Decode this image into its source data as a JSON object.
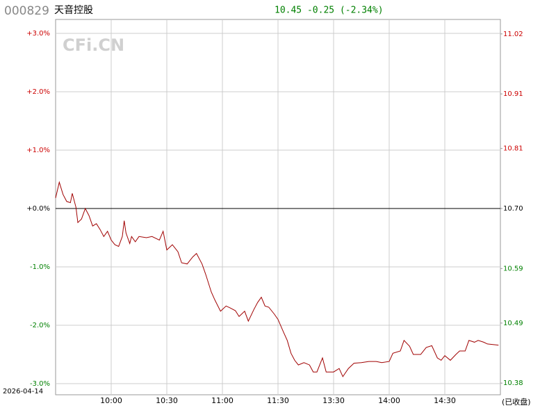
{
  "chart_data": {
    "type": "line",
    "code": "000829",
    "name": "天音控股",
    "quote": "10.45 -0.25 (-2.34%)",
    "watermark": "CFi.CN",
    "date": "2026-04-14",
    "status": "(已收盘)",
    "color": "#a00000",
    "up_color": "#cc0000",
    "down_color": "#008000",
    "flat_color": "#000000",
    "grid": true,
    "xlim": [
      0,
      240
    ],
    "xticks": [
      {
        "value": 30,
        "label": "10:00"
      },
      {
        "value": 60,
        "label": "10:30"
      },
      {
        "value": 90,
        "label": "11:00"
      },
      {
        "value": 120,
        "label": "11:30"
      },
      {
        "value": 150,
        "label": "13:30"
      },
      {
        "value": 180,
        "label": "14:00"
      },
      {
        "value": 210,
        "label": "14:30"
      }
    ],
    "ylim": [
      -3,
      3
    ],
    "yticks": [
      {
        "value": 3,
        "label": "+3.0%"
      },
      {
        "value": 2,
        "label": "+2.0%"
      },
      {
        "value": 1,
        "label": "+1.0%"
      },
      {
        "value": 0,
        "label": "+0.0%"
      },
      {
        "value": -1,
        "label": "-1.0%"
      },
      {
        "value": -2,
        "label": "-2.0%"
      },
      {
        "value": -3,
        "label": "-3.0%"
      }
    ],
    "y2lim": [
      10.379,
      11.021
    ],
    "y2ticks": [
      11.02,
      10.91,
      10.81,
      {
        "value": 10.7,
        "label": "10.70"
      },
      10.59,
      10.49,
      10.38
    ],
    "x": [
      0,
      2,
      4,
      6,
      8,
      9,
      11,
      12,
      14,
      16,
      18,
      20,
      22,
      24,
      26,
      28,
      30,
      32,
      34,
      36,
      37,
      38,
      40,
      41,
      43,
      45,
      49,
      52,
      56,
      58,
      60,
      63,
      66,
      68,
      71,
      74,
      76,
      79,
      81,
      84,
      86,
      89,
      92,
      94,
      97,
      99,
      102,
      104,
      107,
      109,
      111,
      113,
      115,
      118,
      120,
      123,
      125,
      127,
      129,
      131,
      134,
      137,
      139,
      141,
      144,
      146,
      150,
      153,
      155,
      158,
      161,
      165,
      169,
      173,
      176,
      180,
      182,
      186,
      188,
      191,
      193,
      197,
      200,
      203,
      206,
      208,
      210,
      213,
      216,
      218,
      221,
      223,
      226,
      228,
      231,
      233,
      239
    ],
    "values": [
      0.18,
      0.45,
      0.24,
      0.12,
      0.1,
      0.26,
      0.02,
      -0.24,
      -0.18,
      0,
      -0.12,
      -0.3,
      -0.26,
      -0.36,
      -0.48,
      -0.39,
      -0.54,
      -0.62,
      -0.65,
      -0.48,
      -0.21,
      -0.42,
      -0.6,
      -0.48,
      -0.57,
      -0.48,
      -0.5,
      -0.48,
      -0.54,
      -0.39,
      -0.71,
      -0.62,
      -0.74,
      -0.93,
      -0.95,
      -0.83,
      -0.77,
      -0.95,
      -1.13,
      -1.43,
      -1.57,
      -1.76,
      -1.67,
      -1.7,
      -1.75,
      -1.85,
      -1.76,
      -1.93,
      -1.73,
      -1.61,
      -1.52,
      -1.67,
      -1.69,
      -1.81,
      -1.9,
      -2.12,
      -2.26,
      -2.48,
      -2.6,
      -2.68,
      -2.64,
      -2.68,
      -2.8,
      -2.8,
      -2.56,
      -2.8,
      -2.8,
      -2.74,
      -2.88,
      -2.74,
      -2.65,
      -2.64,
      -2.62,
      -2.62,
      -2.64,
      -2.62,
      -2.48,
      -2.44,
      -2.26,
      -2.36,
      -2.5,
      -2.5,
      -2.38,
      -2.35,
      -2.56,
      -2.6,
      -2.52,
      -2.6,
      -2.5,
      -2.44,
      -2.44,
      -2.26,
      -2.29,
      -2.26,
      -2.29,
      -2.32,
      -2.34
    ]
  }
}
